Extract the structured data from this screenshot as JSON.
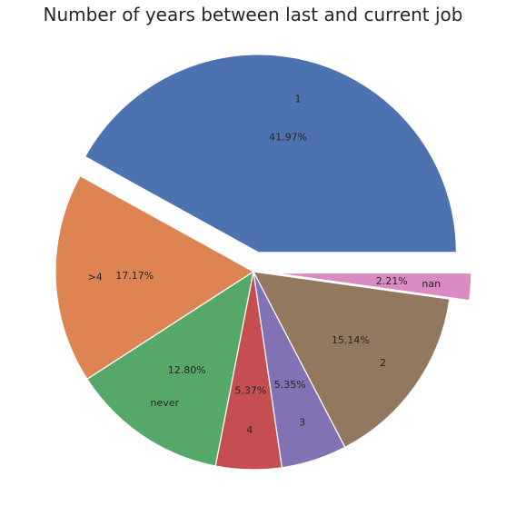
{
  "chart_data": {
    "type": "pie",
    "title": "Number of years between last and current job",
    "slices": [
      {
        "label": "1",
        "pct_label": "41.97%",
        "value": 41.97,
        "color": "#4c72b0",
        "exploded": true
      },
      {
        "label": ">4",
        "pct_label": "17.17%",
        "value": 17.17,
        "color": "#dd8452",
        "exploded": false
      },
      {
        "label": "never",
        "pct_label": "12.80%",
        "value": 12.8,
        "color": "#55a868",
        "exploded": false
      },
      {
        "label": "4",
        "pct_label": "5.37%",
        "value": 5.37,
        "color": "#c44e52",
        "exploded": false
      },
      {
        "label": "3",
        "pct_label": "5.35%",
        "value": 5.35,
        "color": "#8172b3",
        "exploded": false
      },
      {
        "label": "2",
        "pct_label": "15.14%",
        "value": 15.14,
        "color": "#937860",
        "exploded": false
      },
      {
        "label": "nan",
        "pct_label": "2.21%",
        "value": 2.21,
        "color": "#da8bc3",
        "exploded": true
      }
    ],
    "start_angle_deg": 0,
    "direction": "counterclockwise"
  }
}
